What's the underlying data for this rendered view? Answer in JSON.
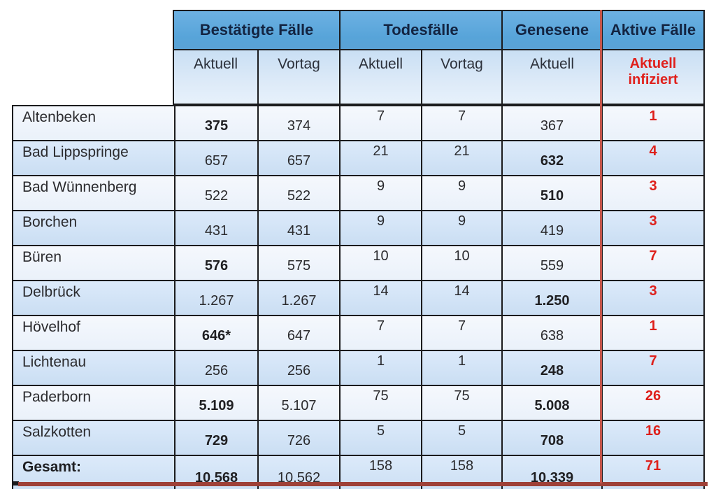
{
  "colors": {
    "header_blue": "#5ea9dd",
    "subheader_blue": "#d3e5f6",
    "row_light": "#eff5fb",
    "row_blue": "#d2e4f5",
    "accent_red_text": "#de1f1a",
    "divider_red_line": "#c4564c",
    "bottom_bar_red": "#9e4138",
    "border_black": "#1b1b1d"
  },
  "header": {
    "groups": [
      {
        "label": "Bestätigte Fälle",
        "cols": 2
      },
      {
        "label": "Todesfälle",
        "cols": 2
      },
      {
        "label": "Genesene",
        "cols": 1
      },
      {
        "label": "Aktive Fälle",
        "cols": 1
      }
    ],
    "sub": [
      "Aktuell",
      "Vortag",
      "Aktuell",
      "Vortag",
      "Aktuell",
      "Aktuell infiziert"
    ]
  },
  "rows": [
    {
      "name": "Altenbeken",
      "name_bold": false,
      "shade": "light",
      "confirmed_current": {
        "value": "375",
        "bold": true
      },
      "confirmed_previous": "374",
      "deaths_current": "7",
      "deaths_previous": "7",
      "recovered": {
        "value": "367",
        "bold": false
      },
      "active": "1"
    },
    {
      "name": "Bad Lippspringe",
      "name_bold": false,
      "shade": "blue",
      "confirmed_current": {
        "value": "657",
        "bold": false
      },
      "confirmed_previous": "657",
      "deaths_current": "21",
      "deaths_previous": "21",
      "recovered": {
        "value": "632",
        "bold": true
      },
      "active": "4"
    },
    {
      "name": "Bad Wünnenberg",
      "name_bold": false,
      "shade": "light",
      "confirmed_current": {
        "value": "522",
        "bold": false
      },
      "confirmed_previous": "522",
      "deaths_current": "9",
      "deaths_previous": "9",
      "recovered": {
        "value": "510",
        "bold": true
      },
      "active": "3"
    },
    {
      "name": "Borchen",
      "name_bold": false,
      "shade": "blue",
      "confirmed_current": {
        "value": "431",
        "bold": false
      },
      "confirmed_previous": "431",
      "deaths_current": "9",
      "deaths_previous": "9",
      "recovered": {
        "value": "419",
        "bold": false
      },
      "active": "3"
    },
    {
      "name": "Büren",
      "name_bold": false,
      "shade": "light",
      "confirmed_current": {
        "value": "576",
        "bold": true
      },
      "confirmed_previous": "575",
      "deaths_current": "10",
      "deaths_previous": "10",
      "recovered": {
        "value": "559",
        "bold": false
      },
      "active": "7"
    },
    {
      "name": "Delbrück",
      "name_bold": false,
      "shade": "blue",
      "confirmed_current": {
        "value": "1.267",
        "bold": false
      },
      "confirmed_previous": "1.267",
      "deaths_current": "14",
      "deaths_previous": "14",
      "recovered": {
        "value": "1.250",
        "bold": true
      },
      "active": "3"
    },
    {
      "name": "Hövelhof",
      "name_bold": false,
      "shade": "light",
      "confirmed_current": {
        "value": "646*",
        "bold": true
      },
      "confirmed_previous": "647",
      "deaths_current": "7",
      "deaths_previous": "7",
      "recovered": {
        "value": "638",
        "bold": false
      },
      "active": "1"
    },
    {
      "name": "Lichtenau",
      "name_bold": false,
      "shade": "blue",
      "confirmed_current": {
        "value": "256",
        "bold": false
      },
      "confirmed_previous": "256",
      "deaths_current": "1",
      "deaths_previous": "1",
      "recovered": {
        "value": "248",
        "bold": true
      },
      "active": "7"
    },
    {
      "name": "Paderborn",
      "name_bold": false,
      "shade": "light",
      "confirmed_current": {
        "value": "5.109",
        "bold": true
      },
      "confirmed_previous": "5.107",
      "deaths_current": "75",
      "deaths_previous": "75",
      "recovered": {
        "value": "5.008",
        "bold": true
      },
      "active": "26"
    },
    {
      "name": "Salzkotten",
      "name_bold": false,
      "shade": "blue",
      "confirmed_current": {
        "value": "729",
        "bold": true
      },
      "confirmed_previous": "726",
      "deaths_current": "5",
      "deaths_previous": "5",
      "recovered": {
        "value": "708",
        "bold": true
      },
      "active": "16"
    },
    {
      "name": "Gesamt:",
      "name_bold": true,
      "shade": "blue",
      "total": true,
      "confirmed_current": {
        "value": "10.568",
        "bold": true
      },
      "confirmed_previous": "10.562",
      "deaths_current": "158",
      "deaths_previous": "158",
      "recovered": {
        "value": "10.339",
        "bold": true
      },
      "active": "71"
    }
  ]
}
